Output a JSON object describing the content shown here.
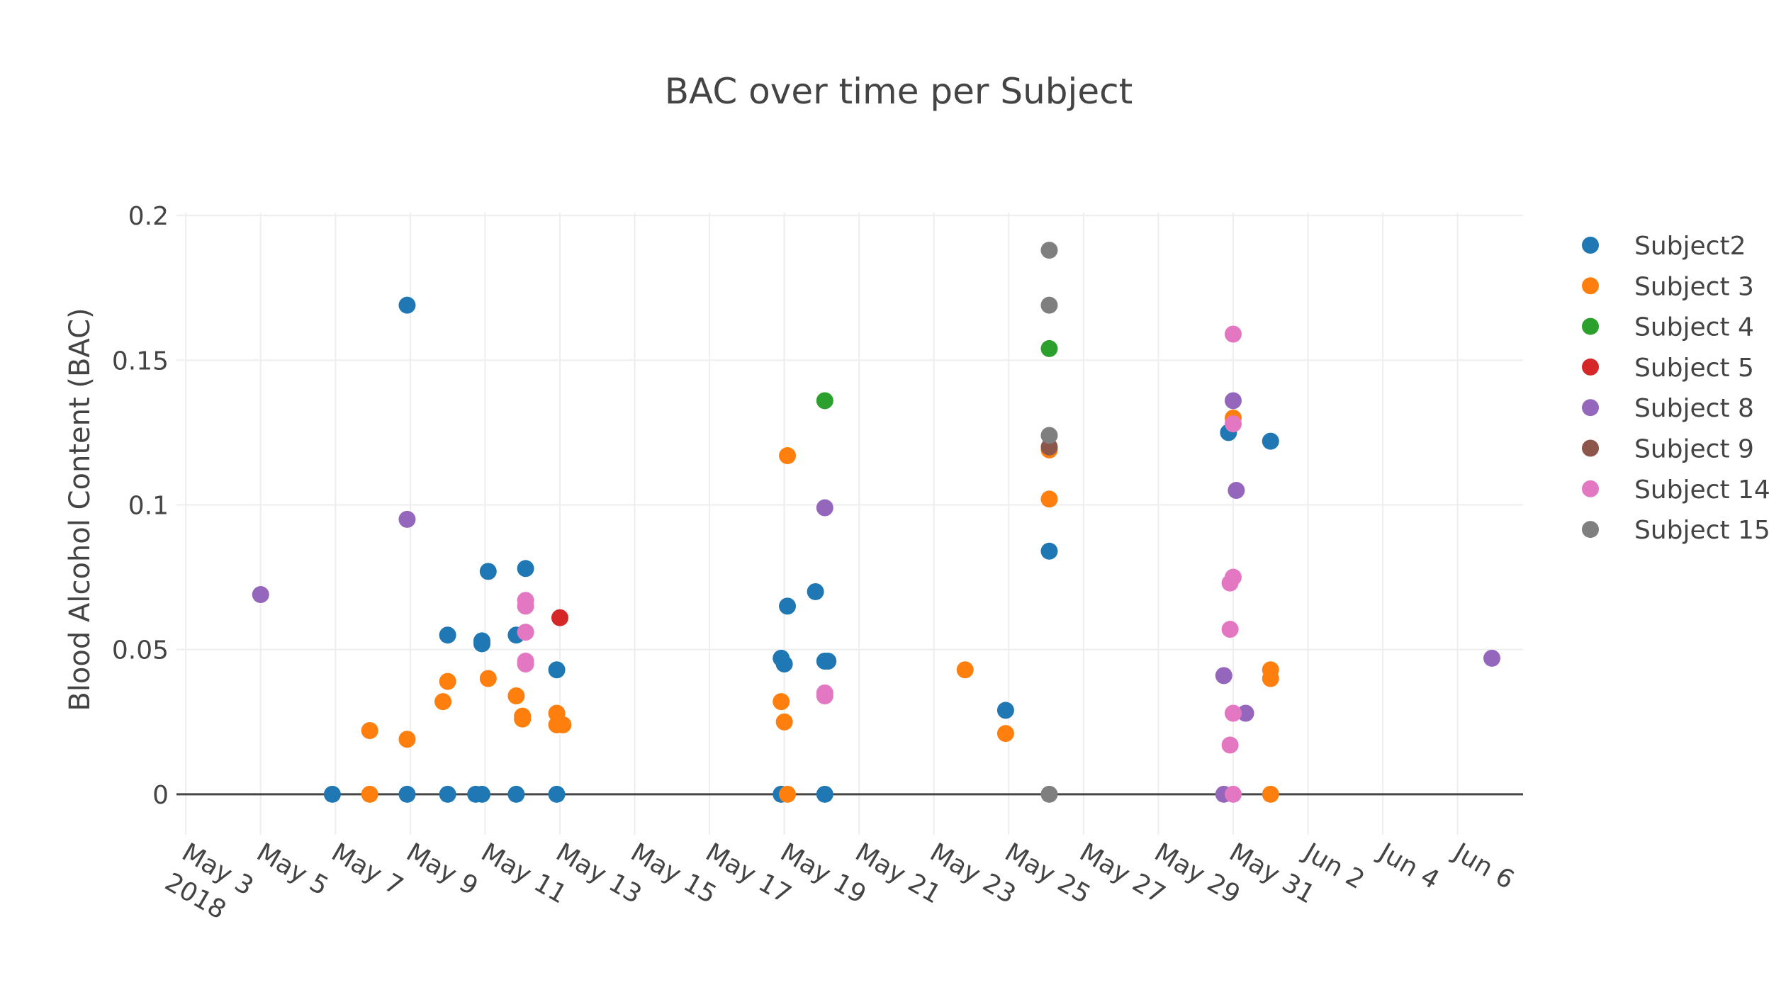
{
  "chart_data": {
    "type": "scatter",
    "title": "BAC over time per Subject",
    "xlabel": "",
    "ylabel": "Blood Alcohol Content (BAC)",
    "x_type": "date",
    "xlim": [
      "2018-05-02T18:00",
      "2018-06-07T18:00"
    ],
    "ylim": [
      -0.014,
      0.201
    ],
    "y_ticks": [
      0,
      0.05,
      0.1,
      0.15,
      0.2
    ],
    "y_tick_labels": [
      "0",
      "0.05",
      "0.1",
      "0.15",
      "0.2"
    ],
    "x_ticks": [
      "2018-05-03",
      "2018-05-05",
      "2018-05-07",
      "2018-05-09",
      "2018-05-11",
      "2018-05-13",
      "2018-05-15",
      "2018-05-17",
      "2018-05-19",
      "2018-05-21",
      "2018-05-23",
      "2018-05-25",
      "2018-05-27",
      "2018-05-29",
      "2018-05-31",
      "2018-06-02",
      "2018-06-04",
      "2018-06-06"
    ],
    "x_tick_labels": [
      "May 3",
      "May 5",
      "May 7",
      "May 9",
      "May 11",
      "May 13",
      "May 15",
      "May 17",
      "May 19",
      "May 21",
      "May 23",
      "May 25",
      "May 27",
      "May 29",
      "May 31",
      "Jun 2",
      "Jun 4",
      "Jun 6"
    ],
    "x_tick_year": "2018",
    "grid": true,
    "zero_line": true,
    "legend_position": "right",
    "series": [
      {
        "name": "Subject2",
        "color": "#1f77b4",
        "points": [
          [
            "2018-05-06T22:00",
            0
          ],
          [
            "2018-05-08T22:00",
            0.169
          ],
          [
            "2018-05-08T22:00",
            0
          ],
          [
            "2018-05-10T00:00",
            0.055
          ],
          [
            "2018-05-10T00:00",
            0
          ],
          [
            "2018-05-10T18:00",
            0
          ],
          [
            "2018-05-10T22:00",
            0.053
          ],
          [
            "2018-05-10T22:00",
            0.052
          ],
          [
            "2018-05-10T22:00",
            0
          ],
          [
            "2018-05-11T02:00",
            0.077
          ],
          [
            "2018-05-11T20:00",
            0.055
          ],
          [
            "2018-05-11T20:00",
            0
          ],
          [
            "2018-05-12T02:00",
            0.078
          ],
          [
            "2018-05-12T22:00",
            0.043
          ],
          [
            "2018-05-12T22:00",
            0
          ],
          [
            "2018-05-18T22:00",
            0.047
          ],
          [
            "2018-05-19T00:00",
            0.045
          ],
          [
            "2018-05-19T02:00",
            0.065
          ],
          [
            "2018-05-18T22:00",
            0
          ],
          [
            "2018-05-19T20:00",
            0.07
          ],
          [
            "2018-05-20T02:00",
            0.046
          ],
          [
            "2018-05-20T04:00",
            0.046
          ],
          [
            "2018-05-20T02:00",
            0
          ],
          [
            "2018-05-24T22:00",
            0.029
          ],
          [
            "2018-05-26T02:00",
            0.084
          ],
          [
            "2018-05-30T21:00",
            0.125
          ],
          [
            "2018-06-01T00:00",
            0.122
          ]
        ]
      },
      {
        "name": "Subject 3",
        "color": "#ff7f0e",
        "points": [
          [
            "2018-05-07T22:00",
            0.022
          ],
          [
            "2018-05-07T22:00",
            0
          ],
          [
            "2018-05-08T22:00",
            0.019
          ],
          [
            "2018-05-09T21:00",
            0.032
          ],
          [
            "2018-05-10T00:00",
            0.039
          ],
          [
            "2018-05-11T02:00",
            0.04
          ],
          [
            "2018-05-11T20:00",
            0.034
          ],
          [
            "2018-05-12T00:00",
            0.027
          ],
          [
            "2018-05-12T00:00",
            0.026
          ],
          [
            "2018-05-12T22:00",
            0.028
          ],
          [
            "2018-05-12T22:00",
            0.024
          ],
          [
            "2018-05-13T02:00",
            0.024
          ],
          [
            "2018-05-18T22:00",
            0.032
          ],
          [
            "2018-05-19T00:00",
            0.025
          ],
          [
            "2018-05-19T02:00",
            0.117
          ],
          [
            "2018-05-19T02:00",
            0
          ],
          [
            "2018-05-23T20:00",
            0.043
          ],
          [
            "2018-05-24T22:00",
            0.021
          ],
          [
            "2018-05-26T02:00",
            0.119
          ],
          [
            "2018-05-26T02:00",
            0.102
          ],
          [
            "2018-05-31T00:00",
            0.13
          ],
          [
            "2018-06-01T00:00",
            0.043
          ],
          [
            "2018-06-01T00:00",
            0.04
          ],
          [
            "2018-06-01T00:00",
            0
          ]
        ]
      },
      {
        "name": "Subject 4",
        "color": "#2ca02c",
        "points": [
          [
            "2018-05-20T02:00",
            0.136
          ],
          [
            "2018-05-26T02:00",
            0.154
          ]
        ]
      },
      {
        "name": "Subject 5",
        "color": "#d62728",
        "points": [
          [
            "2018-05-13T00:00",
            0.061
          ]
        ]
      },
      {
        "name": "Subject 8",
        "color": "#9467bd",
        "points": [
          [
            "2018-05-05T00:00",
            0.069
          ],
          [
            "2018-05-08T22:00",
            0.095
          ],
          [
            "2018-05-20T02:00",
            0.099
          ],
          [
            "2018-05-31T00:00",
            0.136
          ],
          [
            "2018-05-31T02:00",
            0.105
          ],
          [
            "2018-05-30T18:00",
            0.041
          ],
          [
            "2018-05-30T18:00",
            0
          ],
          [
            "2018-05-31T08:00",
            0.028
          ],
          [
            "2018-06-06T22:00",
            0.047
          ]
        ]
      },
      {
        "name": "Subject 9",
        "color": "#8c564b",
        "points": [
          [
            "2018-05-26T02:00",
            0.12
          ]
        ]
      },
      {
        "name": "Subject 14",
        "color": "#e377c2",
        "points": [
          [
            "2018-05-12T02:00",
            0.067
          ],
          [
            "2018-05-12T02:00",
            0.065
          ],
          [
            "2018-05-12T02:00",
            0.056
          ],
          [
            "2018-05-12T02:00",
            0.046
          ],
          [
            "2018-05-12T02:00",
            0.045
          ],
          [
            "2018-05-20T02:00",
            0.035
          ],
          [
            "2018-05-20T02:00",
            0.034
          ],
          [
            "2018-05-31T00:00",
            0.159
          ],
          [
            "2018-05-31T00:00",
            0.128
          ],
          [
            "2018-05-31T00:00",
            0.075
          ],
          [
            "2018-05-30T22:00",
            0.073
          ],
          [
            "2018-05-30T22:00",
            0.057
          ],
          [
            "2018-05-31T00:00",
            0.028
          ],
          [
            "2018-05-30T22:00",
            0.017
          ],
          [
            "2018-05-31T00:00",
            0
          ]
        ]
      },
      {
        "name": "Subject 15",
        "color": "#7f7f7f",
        "points": [
          [
            "2018-05-26T02:00",
            0.188
          ],
          [
            "2018-05-26T02:00",
            0.169
          ],
          [
            "2018-05-26T02:00",
            0.124
          ],
          [
            "2018-05-26T02:00",
            0
          ]
        ]
      }
    ]
  }
}
